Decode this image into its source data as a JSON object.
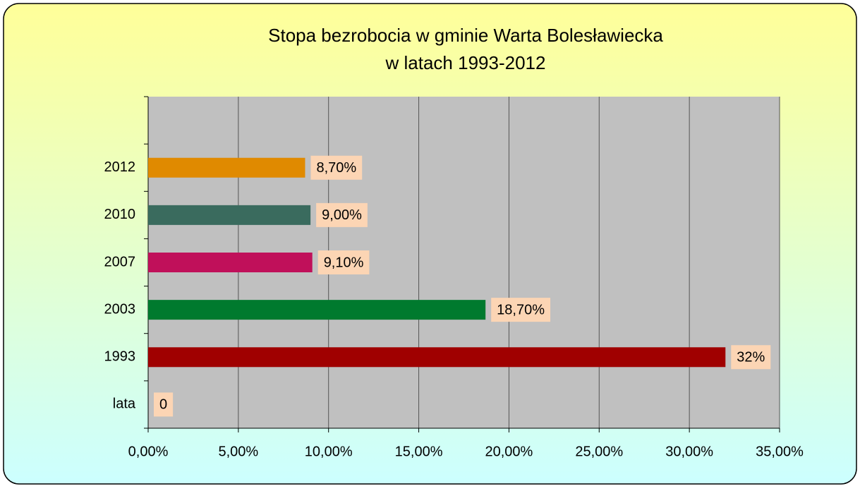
{
  "chart_data": {
    "type": "barh",
    "title": [
      "Stopa bezrobocia w gminie Warta Bolesławiecka",
      "w latach 1993-2012"
    ],
    "categories": [
      null,
      "2012",
      "2010",
      "2007",
      "2003",
      "1993",
      "lata"
    ],
    "values": [
      null,
      8.7,
      9,
      9.1,
      18.7,
      32,
      0
    ],
    "value_labels": [
      null,
      "8,70%",
      "9,00%",
      "9,10%",
      "18,70%",
      "32%",
      "0"
    ],
    "colors": [
      null,
      "#e08a00",
      "#3a6b5e",
      "#c0105a",
      "#007a2e",
      "#a00000",
      "#a00000"
    ],
    "xlim": [
      0,
      35
    ],
    "xticks": [
      {
        "value": 0,
        "label": "0,00%"
      },
      {
        "value": 5,
        "label": "5,00%"
      },
      {
        "value": 10,
        "label": "10,00%"
      },
      {
        "value": 15,
        "label": "15,00%"
      },
      {
        "value": 20,
        "label": "20,00%"
      },
      {
        "value": 25,
        "label": "25,00%"
      },
      {
        "value": 30,
        "label": "30,00%"
      },
      {
        "value": 35,
        "label": "35,00%"
      }
    ],
    "grid": true
  }
}
